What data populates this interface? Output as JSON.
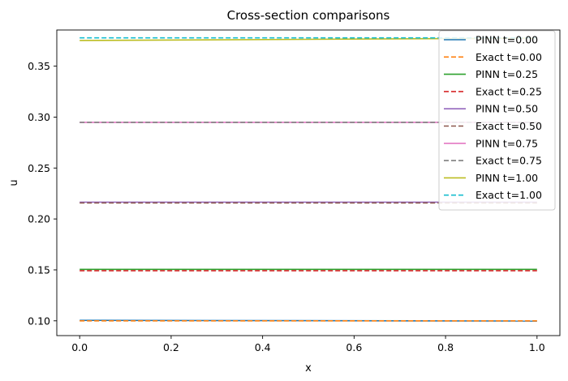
{
  "chart_data": {
    "type": "line",
    "title": "Cross-section comparisons",
    "xlabel": "x",
    "ylabel": "u",
    "xlim": [
      -0.05,
      1.05
    ],
    "ylim": [
      0.0855,
      0.3855
    ],
    "xticks": [
      0.0,
      0.2,
      0.4,
      0.6,
      0.8,
      1.0
    ],
    "xtick_labels": [
      "0.0",
      "0.2",
      "0.4",
      "0.6",
      "0.8",
      "1.0"
    ],
    "yticks": [
      0.1,
      0.15,
      0.2,
      0.25,
      0.3,
      0.35
    ],
    "ytick_labels": [
      "0.10",
      "0.15",
      "0.20",
      "0.25",
      "0.30",
      "0.35"
    ],
    "grid": false,
    "legend_position": "top-right",
    "series": [
      {
        "name": "PINN t=0.00",
        "color": "#1f77b4",
        "style": "solid",
        "x": [
          0.0,
          1.0
        ],
        "y": [
          0.1005,
          0.0998
        ]
      },
      {
        "name": "Exact t=0.00",
        "color": "#ff7f0e",
        "style": "dashed",
        "x": [
          0.0,
          1.0
        ],
        "y": [
          0.1,
          0.1
        ]
      },
      {
        "name": "PINN t=0.25",
        "color": "#2ca02c",
        "style": "solid",
        "x": [
          0.0,
          1.0
        ],
        "y": [
          0.1505,
          0.1505
        ]
      },
      {
        "name": "Exact t=0.25",
        "color": "#d62728",
        "style": "dashed",
        "x": [
          0.0,
          1.0
        ],
        "y": [
          0.1492,
          0.1492
        ]
      },
      {
        "name": "PINN t=0.50",
        "color": "#9467bd",
        "style": "solid",
        "x": [
          0.0,
          1.0
        ],
        "y": [
          0.2165,
          0.2165
        ]
      },
      {
        "name": "Exact t=0.50",
        "color": "#8c564b",
        "style": "dashed",
        "x": [
          0.0,
          1.0
        ],
        "y": [
          0.2157,
          0.2157
        ]
      },
      {
        "name": "PINN t=0.75",
        "color": "#e377c2",
        "style": "solid",
        "x": [
          0.0,
          1.0
        ],
        "y": [
          0.2948,
          0.2948
        ]
      },
      {
        "name": "Exact t=0.75",
        "color": "#7f7f7f",
        "style": "dashed",
        "x": [
          0.0,
          1.0
        ],
        "y": [
          0.2948,
          0.2948
        ]
      },
      {
        "name": "PINN t=1.00",
        "color": "#bcbd22",
        "style": "solid",
        "x": [
          0.0,
          1.0
        ],
        "y": [
          0.3752,
          0.3775
        ]
      },
      {
        "name": "Exact t=1.00",
        "color": "#17becf",
        "style": "dashed",
        "x": [
          0.0,
          1.0
        ],
        "y": [
          0.3778,
          0.3778
        ]
      }
    ]
  }
}
